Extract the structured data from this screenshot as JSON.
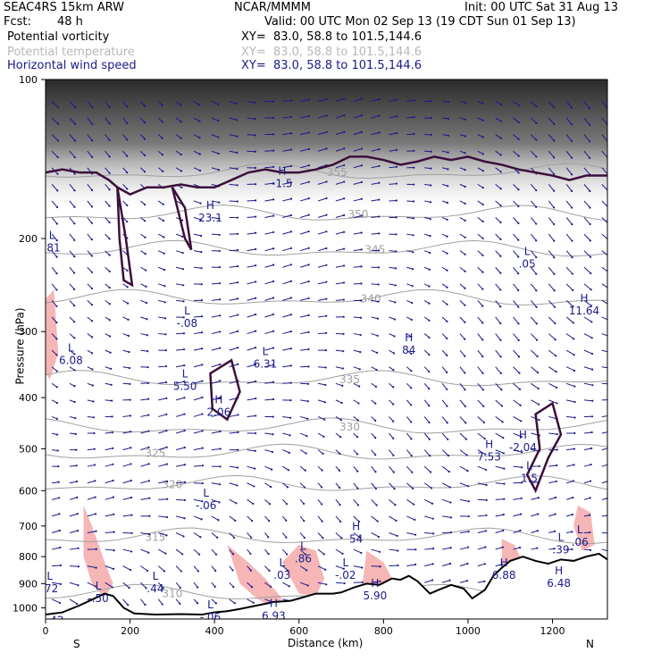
{
  "header": {
    "model": "SEAC4RS 15km ARW",
    "org": "NCAR/MMMM",
    "init": "Init: 00 UTC Sat 31 Aug 13",
    "fcst_label": "Fcst:",
    "fcst_value": "48 h",
    "valid": "Valid: 00 UTC Mon 02 Sep 13 (19 CDT Sun 01 Sep 13)"
  },
  "fields": [
    {
      "name": "Potential vorticity",
      "xy": "XY=  83.0, 58.8 to 101.5,144.6",
      "color": "#000000"
    },
    {
      "name": "Potential temperature",
      "xy": "XY=  83.0, 58.8 to 101.5,144.6",
      "color": "#b8b8b8"
    },
    {
      "name": "Horizontal wind speed",
      "xy": "XY=  83.0, 58.8 to 101.5,144.6",
      "color": "#1a1a8c"
    }
  ],
  "colors": {
    "pv_contour": "#3b0f3b",
    "theta": "#a0a0a0",
    "wind": "#1a1a8c",
    "pv_shade": "#f6b6b6",
    "hl_label": "#1a1a8c",
    "terrain": "#000000"
  },
  "chart_data": {
    "type": "cross-section",
    "xlabel": "Distance (km)",
    "ylabel": "Pressure (hPa)",
    "xlim": [
      0,
      1330
    ],
    "ylim": [
      1050,
      100
    ],
    "y_scale": "log",
    "x_ticks": [
      "0",
      "200",
      "400",
      "600",
      "800",
      "1000",
      "1200"
    ],
    "y_ticks": [
      "100",
      "200",
      "300",
      "400",
      "500",
      "600",
      "700",
      "800",
      "900",
      "1000"
    ],
    "left_end": "S",
    "right_end": "N",
    "theta_contours": [
      {
        "label": "355",
        "x": 690,
        "p": 150
      },
      {
        "label": "350",
        "x": 740,
        "p": 180
      },
      {
        "label": "345",
        "x": 780,
        "p": 210
      },
      {
        "label": "340",
        "x": 770,
        "p": 260
      },
      {
        "label": "335",
        "x": 720,
        "p": 370
      },
      {
        "label": "330",
        "x": 720,
        "p": 455
      },
      {
        "label": "325",
        "x": 260,
        "p": 510
      },
      {
        "label": "320",
        "x": 300,
        "p": 585
      },
      {
        "label": "315",
        "x": 260,
        "p": 735
      },
      {
        "label": "310",
        "x": 300,
        "p": 940
      }
    ],
    "hl_labels": [
      {
        "type": "L",
        "value": ".81",
        "x": 15,
        "p": 205
      },
      {
        "type": "H",
        "value": "23.1",
        "x": 390,
        "p": 180
      },
      {
        "type": "L",
        "value": "-.08",
        "x": 335,
        "p": 285
      },
      {
        "type": "L",
        "value": "6.08",
        "x": 60,
        "p": 335
      },
      {
        "type": "L",
        "value": "6.31",
        "x": 520,
        "p": 340
      },
      {
        "type": "L",
        "value": "5.50",
        "x": 330,
        "p": 375
      },
      {
        "type": "H",
        "value": "2.06",
        "x": 410,
        "p": 420
      },
      {
        "type": "H",
        "value": "84",
        "x": 860,
        "p": 320
      },
      {
        "type": "L",
        "value": ".05",
        "x": 1140,
        "p": 220
      },
      {
        "type": "H",
        "value": "11.64",
        "x": 1275,
        "p": 270
      },
      {
        "type": "H",
        "value": "-2.04",
        "x": 1130,
        "p": 490
      },
      {
        "type": "H",
        "value": "7.53",
        "x": 1050,
        "p": 510
      },
      {
        "type": "L",
        "value": "1.5",
        "x": 1145,
        "p": 560
      },
      {
        "type": "L",
        "value": "-.06",
        "x": 380,
        "p": 630
      },
      {
        "type": "H",
        "value": "54",
        "x": 735,
        "p": 730
      },
      {
        "type": "L",
        "value": ".86",
        "x": 610,
        "p": 795
      },
      {
        "type": "L",
        "value": ".03",
        "x": 560,
        "p": 855
      },
      {
        "type": "L",
        "value": "-.02",
        "x": 710,
        "p": 855
      },
      {
        "type": "H",
        "value": "6.88",
        "x": 1085,
        "p": 855
      },
      {
        "type": "L",
        "value": ".39",
        "x": 1220,
        "p": 765
      },
      {
        "type": "L",
        "value": ".06",
        "x": 1265,
        "p": 740
      },
      {
        "type": "H",
        "value": "6.48",
        "x": 1215,
        "p": 885
      },
      {
        "type": "L",
        "value": ".72",
        "x": 10,
        "p": 905
      },
      {
        "type": "L",
        "value": ".44",
        "x": 260,
        "p": 905
      },
      {
        "type": "L",
        "value": "-.50",
        "x": 125,
        "p": 945
      },
      {
        "type": "H",
        "value": "5.90",
        "x": 780,
        "p": 935
      },
      {
        "type": "H",
        "value": "6.93",
        "x": 540,
        "p": 1020
      },
      {
        "type": "L",
        "value": "-.06",
        "x": 390,
        "p": 1025
      },
      {
        "type": "H",
        "value": "-1.5",
        "x": 560,
        "p": 155
      },
      {
        "type": "",
        "value": "1.42",
        "x": 15,
        "p": 1040
      }
    ],
    "terrain": [
      [
        0,
        1030
      ],
      [
        40,
        1020
      ],
      [
        80,
        990
      ],
      [
        110,
        965
      ],
      [
        140,
        940
      ],
      [
        160,
        950
      ],
      [
        185,
        1000
      ],
      [
        210,
        1025
      ],
      [
        260,
        1030
      ],
      [
        320,
        1028
      ],
      [
        370,
        1030
      ],
      [
        400,
        1020
      ],
      [
        430,
        1015
      ],
      [
        460,
        1005
      ],
      [
        500,
        990
      ],
      [
        540,
        975
      ],
      [
        580,
        970
      ],
      [
        600,
        960
      ],
      [
        640,
        940
      ],
      [
        680,
        940
      ],
      [
        700,
        935
      ],
      [
        730,
        915
      ],
      [
        760,
        900
      ],
      [
        790,
        905
      ],
      [
        820,
        880
      ],
      [
        840,
        885
      ],
      [
        860,
        870
      ],
      [
        880,
        890
      ],
      [
        910,
        940
      ],
      [
        930,
        925
      ],
      [
        960,
        905
      ],
      [
        990,
        920
      ],
      [
        1010,
        960
      ],
      [
        1040,
        925
      ],
      [
        1060,
        870
      ],
      [
        1080,
        840
      ],
      [
        1100,
        815
      ],
      [
        1130,
        800
      ],
      [
        1160,
        815
      ],
      [
        1190,
        825
      ],
      [
        1220,
        810
      ],
      [
        1250,
        815
      ],
      [
        1280,
        800
      ],
      [
        1310,
        790
      ],
      [
        1330,
        810
      ]
    ],
    "tropopause": [
      [
        0,
        150
      ],
      [
        40,
        148
      ],
      [
        80,
        150
      ],
      [
        120,
        150
      ],
      [
        150,
        155
      ],
      [
        170,
        160
      ],
      [
        200,
        165
      ],
      [
        240,
        160
      ],
      [
        280,
        160
      ],
      [
        320,
        158
      ],
      [
        360,
        160
      ],
      [
        400,
        160
      ],
      [
        440,
        155
      ],
      [
        480,
        150
      ],
      [
        520,
        148
      ],
      [
        560,
        150
      ],
      [
        600,
        150
      ],
      [
        640,
        148
      ],
      [
        680,
        145
      ],
      [
        720,
        140
      ],
      [
        760,
        140
      ],
      [
        800,
        142
      ],
      [
        840,
        145
      ],
      [
        880,
        143
      ],
      [
        920,
        140
      ],
      [
        960,
        142
      ],
      [
        1000,
        140
      ],
      [
        1040,
        143
      ],
      [
        1080,
        145
      ],
      [
        1120,
        148
      ],
      [
        1160,
        150
      ],
      [
        1200,
        152
      ],
      [
        1240,
        155
      ],
      [
        1280,
        152
      ],
      [
        1330,
        152
      ]
    ]
  }
}
